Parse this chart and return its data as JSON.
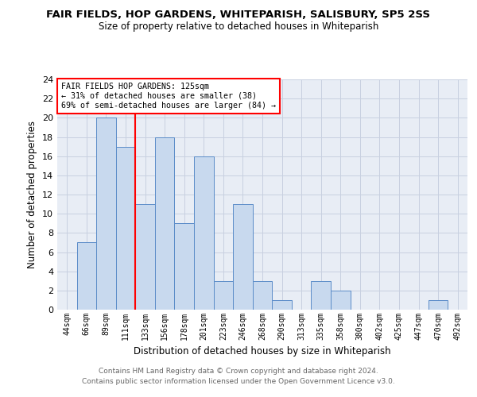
{
  "title": "FAIR FIELDS, HOP GARDENS, WHITEPARISH, SALISBURY, SP5 2SS",
  "subtitle": "Size of property relative to detached houses in Whiteparish",
  "xlabel": "Distribution of detached houses by size in Whiteparish",
  "ylabel": "Number of detached properties",
  "categories": [
    "44sqm",
    "66sqm",
    "89sqm",
    "111sqm",
    "133sqm",
    "156sqm",
    "178sqm",
    "201sqm",
    "223sqm",
    "246sqm",
    "268sqm",
    "290sqm",
    "313sqm",
    "335sqm",
    "358sqm",
    "380sqm",
    "402sqm",
    "425sqm",
    "447sqm",
    "470sqm",
    "492sqm"
  ],
  "values": [
    0,
    7,
    20,
    17,
    11,
    18,
    9,
    16,
    3,
    11,
    3,
    1,
    0,
    3,
    2,
    0,
    0,
    0,
    0,
    1,
    0
  ],
  "bar_color": "#c8d9ee",
  "bar_edge_color": "#5b8cc8",
  "red_line_x": 3.5,
  "annotation_title": "FAIR FIELDS HOP GARDENS: 125sqm",
  "annotation_line1": "← 31% of detached houses are smaller (38)",
  "annotation_line2": "69% of semi-detached houses are larger (84) →",
  "ylim": [
    0,
    24
  ],
  "yticks": [
    0,
    2,
    4,
    6,
    8,
    10,
    12,
    14,
    16,
    18,
    20,
    22,
    24
  ],
  "footer_line1": "Contains HM Land Registry data © Crown copyright and database right 2024.",
  "footer_line2": "Contains public sector information licensed under the Open Government Licence v3.0.",
  "bg_color": "#ffffff",
  "plot_bg_color": "#e8edf5",
  "grid_color": "#c8d0e0"
}
